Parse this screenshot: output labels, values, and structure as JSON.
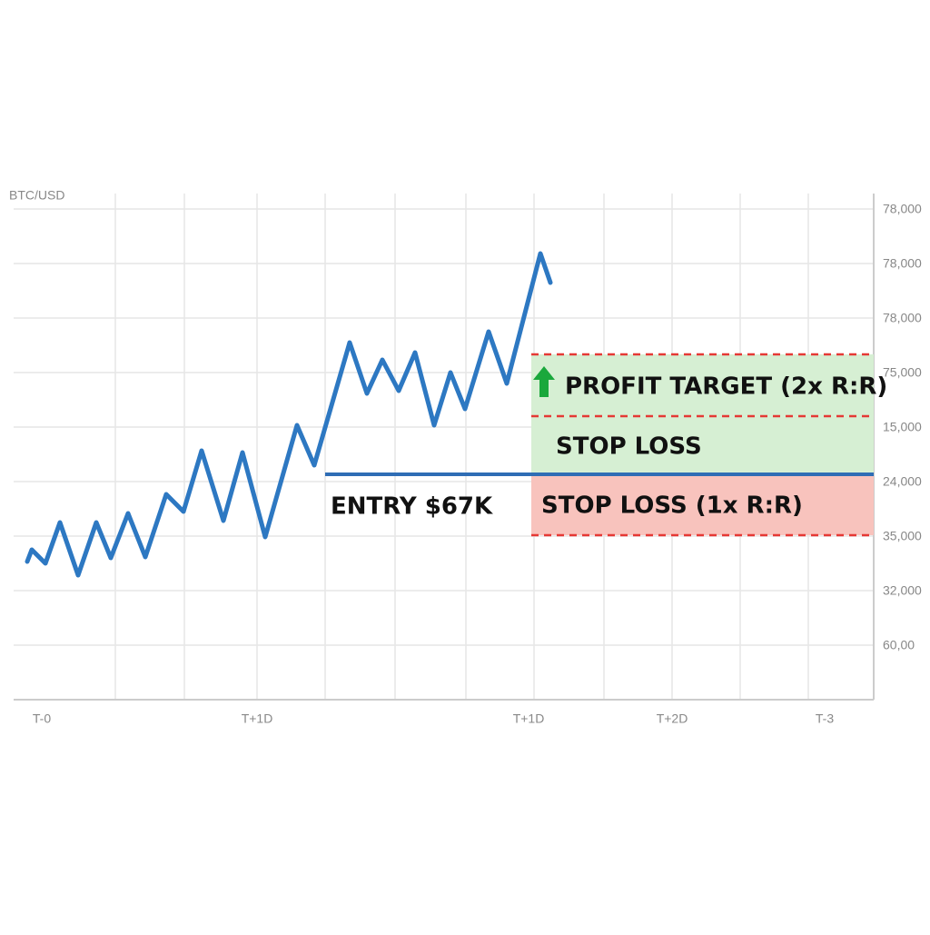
{
  "chart": {
    "pair": "BTC/USD",
    "y_labels": [
      "78,000",
      "78,000",
      "78,000",
      "75,000",
      "15,000",
      "24,000",
      "35,000",
      "32,000",
      "60,00"
    ],
    "x_labels": [
      "T-0",
      "T+1D",
      "T+1D",
      "T+2D",
      "T-3"
    ],
    "entry_label": "ENTRY $67K",
    "zones": {
      "profit_target": "PROFIT TARGET (2x R:R)",
      "stop_loss_upper": "STOP LOSS",
      "stop_loss_lower": "STOP LOSS (1x R:R)"
    }
  }
}
